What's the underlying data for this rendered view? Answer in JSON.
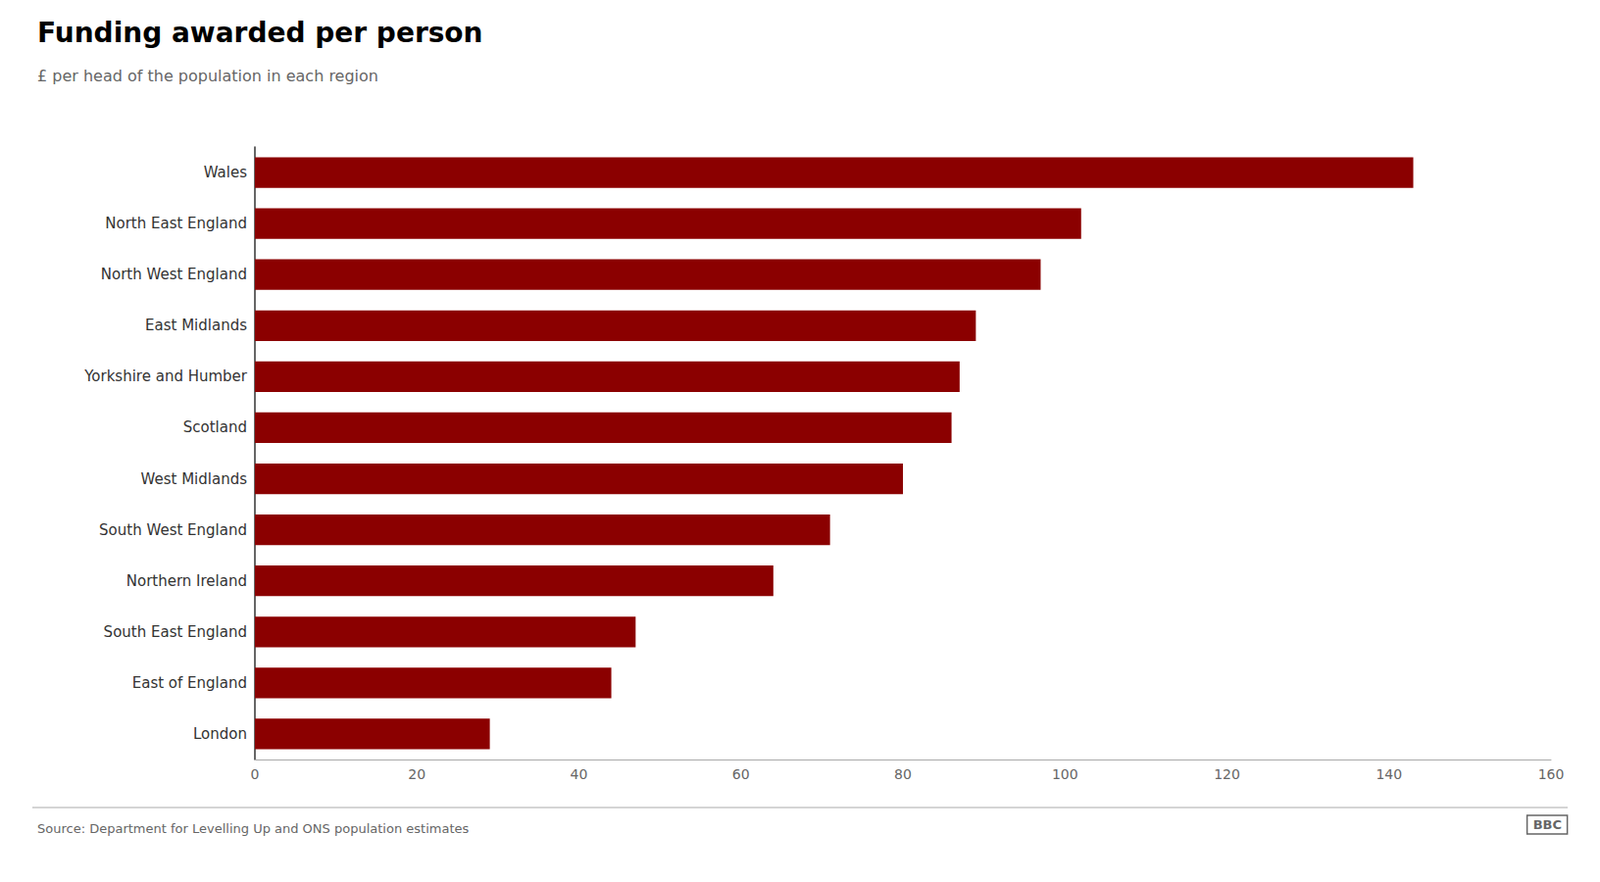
{
  "chart_data": {
    "type": "bar",
    "orientation": "horizontal",
    "title": "Funding awarded per person",
    "subtitle": "£ per head of the population in each region",
    "annotations": [
      "Source: Department for Levelling Up and ONS population estimates",
      "BBC"
    ],
    "categories": [
      "Wales",
      "North East England",
      "North West England",
      "East Midlands",
      "Yorkshire and Humber",
      "Scotland",
      "West Midlands",
      "South West England",
      "Northern Ireland",
      "South East England",
      "East of England",
      "London"
    ],
    "values": [
      143,
      102,
      97,
      89,
      87,
      86,
      80,
      71,
      64,
      47,
      44,
      29
    ],
    "color": "#8B0000",
    "xlim": [
      0,
      160
    ],
    "xticks": [
      0,
      20,
      40,
      60,
      80,
      100,
      120,
      140,
      160
    ],
    "grid": false
  }
}
